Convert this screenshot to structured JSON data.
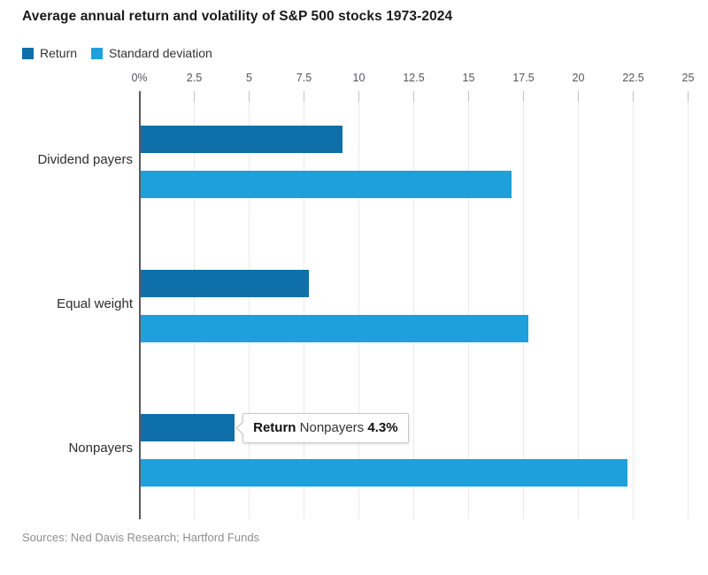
{
  "title": "Average annual return and volatility of S&P 500 stocks 1973-2024",
  "legend": {
    "items": [
      {
        "label": "Return",
        "color": "#0f6fa8"
      },
      {
        "label": "Standard deviation",
        "color": "#1ea0dc"
      }
    ]
  },
  "chart_data": {
    "type": "bar",
    "orientation": "horizontal",
    "title": "Average annual return and volatility of S&P 500 stocks 1973-2024",
    "categories": [
      "Dividend payers",
      "Equal weight",
      "Nonpayers"
    ],
    "series": [
      {
        "name": "Return",
        "color": "#0f6fa8",
        "values": [
          9.2,
          7.7,
          4.3
        ]
      },
      {
        "name": "Standard deviation",
        "color": "#1ea0dc",
        "values": [
          16.9,
          17.7,
          22.2
        ]
      }
    ],
    "x_axis": {
      "unit": "%",
      "min": 0,
      "max": 25,
      "tick_values": [
        0,
        2.5,
        5,
        7.5,
        10,
        12.5,
        15,
        17.5,
        20,
        22.5,
        25
      ],
      "ticks": [
        "0%",
        "2.5",
        "5",
        "7.5",
        "10",
        "12.5",
        "15",
        "17.5",
        "20",
        "22.5",
        "25"
      ]
    },
    "grid": true,
    "legend_position": "top-left"
  },
  "tooltip": {
    "series": "Return",
    "category": "Nonpayers",
    "value": "4.3%",
    "target_category_index": 2,
    "target_series_index": 0
  },
  "source": "Sources: Ned Davis Research; Hartford Funds"
}
